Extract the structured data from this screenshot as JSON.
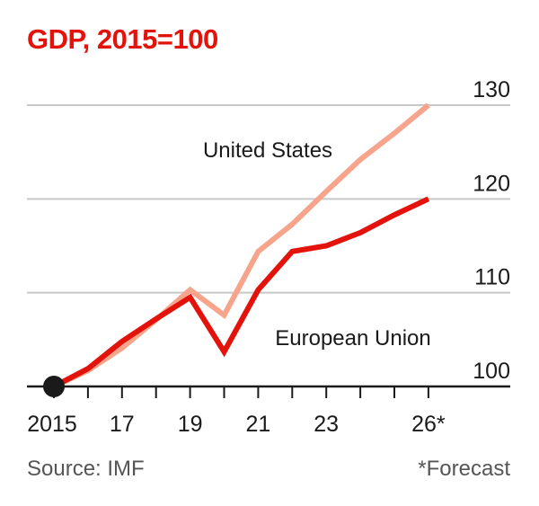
{
  "header": {
    "title": "GDP, 2015=100"
  },
  "footer": {
    "source": "Source: IMF",
    "note": "*Forecast"
  },
  "colors": {
    "eu": "#e3120b",
    "us": "#f7a48c",
    "grid": "#c8c8c8",
    "axis": "#1a1a1a"
  },
  "chart_data": {
    "type": "line",
    "title": "GDP, 2015=100",
    "x": [
      2015,
      2016,
      2017,
      2018,
      2019,
      2020,
      2021,
      2022,
      2023,
      2024,
      2025,
      2026
    ],
    "x_tick_labels": [
      {
        "x": 2015,
        "label": "2015"
      },
      {
        "x": 2017,
        "label": "17"
      },
      {
        "x": 2019,
        "label": "19"
      },
      {
        "x": 2021,
        "label": "21"
      },
      {
        "x": 2023,
        "label": "23"
      },
      {
        "x": 2026,
        "label": "26*"
      }
    ],
    "y_ticks": [
      100,
      110,
      120,
      130
    ],
    "ylim": [
      100,
      130
    ],
    "grid": true,
    "y_axis_side": "right",
    "series": [
      {
        "name": "United States",
        "key": "us",
        "values": [
          100,
          101.7,
          104.1,
          107.1,
          110.3,
          107.6,
          114.4,
          117.3,
          120.8,
          124.2,
          127,
          130
        ]
      },
      {
        "name": "European Union",
        "key": "eu",
        "values": [
          100,
          101.9,
          104.8,
          107.2,
          109.5,
          103.7,
          110.3,
          114.4,
          115,
          116.4,
          118.3,
          120
        ]
      }
    ],
    "start_marker": {
      "x": 2015,
      "y": 100
    }
  }
}
